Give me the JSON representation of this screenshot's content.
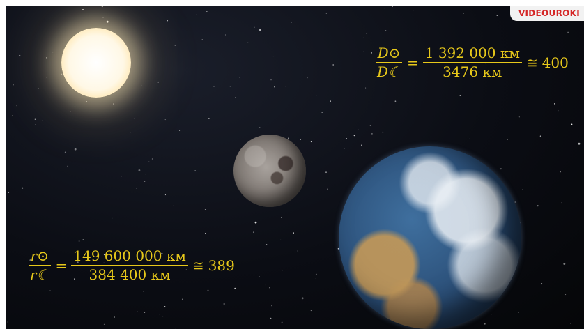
{
  "brand": "VIDEOUROKI",
  "formula_diameter": {
    "left_numerator": "D⊙",
    "left_denominator": "D☾",
    "equals": "=",
    "right_numerator": "1 392 000 км",
    "right_denominator": "3476 км",
    "approx": "≅",
    "result": "400"
  },
  "formula_distance": {
    "left_numerator": "r⊙",
    "left_denominator": "r☾",
    "equals": "=",
    "right_numerator": "149 600 000 км",
    "right_denominator": "384 400 км",
    "approx": "≅",
    "result": "389"
  },
  "colors": {
    "formula": "#e7c81a",
    "brand": "#d52626",
    "space": "#0b0d14"
  },
  "icons": {
    "sun": "sun-image",
    "moon": "moon-image",
    "earth": "earth-image"
  }
}
